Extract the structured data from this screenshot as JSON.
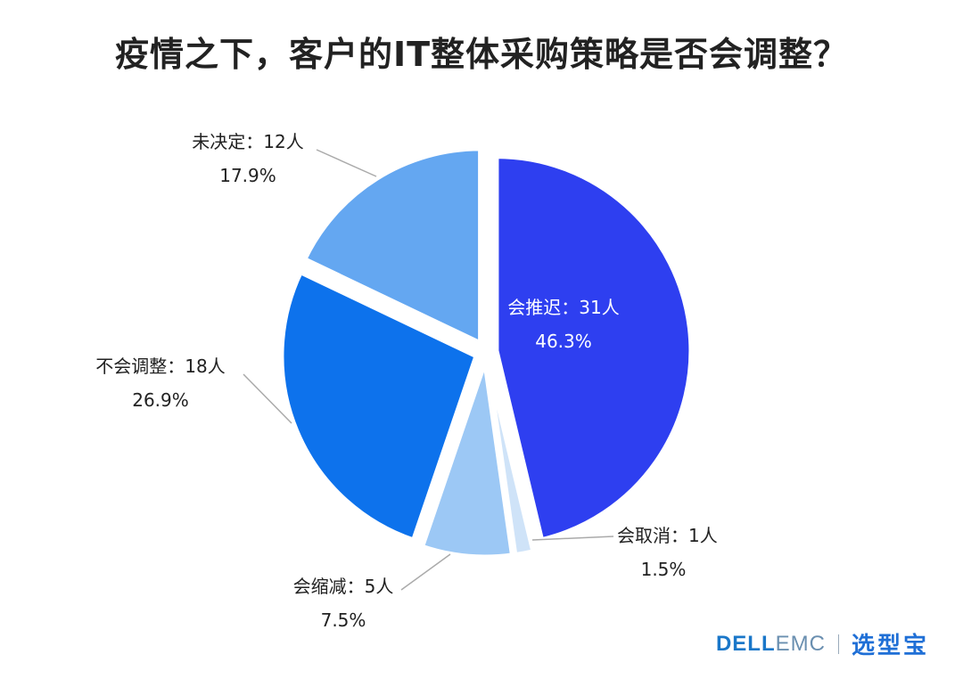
{
  "title": "疫情之下，客户的IT整体采购策略是否会调整？",
  "chart_data": {
    "type": "pie",
    "title": "疫情之下，客户的IT整体采购策略是否会调整？",
    "slices": [
      {
        "label": "会推迟",
        "count": "31人",
        "value": 31,
        "percent": "46.3%",
        "color": "#2e3ff0",
        "label_inside": true
      },
      {
        "label": "会取消",
        "count": "1人",
        "value": 1,
        "percent": "1.5%",
        "color": "#cfe3f8",
        "label_inside": false
      },
      {
        "label": "会缩减",
        "count": "5人",
        "value": 5,
        "percent": "7.5%",
        "color": "#9cc8f5",
        "label_inside": false
      },
      {
        "label": "不会调整",
        "count": "18人",
        "value": 18,
        "percent": "26.9%",
        "color": "#0d72ec",
        "label_inside": false
      },
      {
        "label": "未决定",
        "count": "12人",
        "value": 12,
        "percent": "17.9%",
        "color": "#64a7f1",
        "label_inside": false
      }
    ]
  },
  "brand": {
    "dell": "DELL",
    "emc": "EMC",
    "cn": "选型宝"
  }
}
